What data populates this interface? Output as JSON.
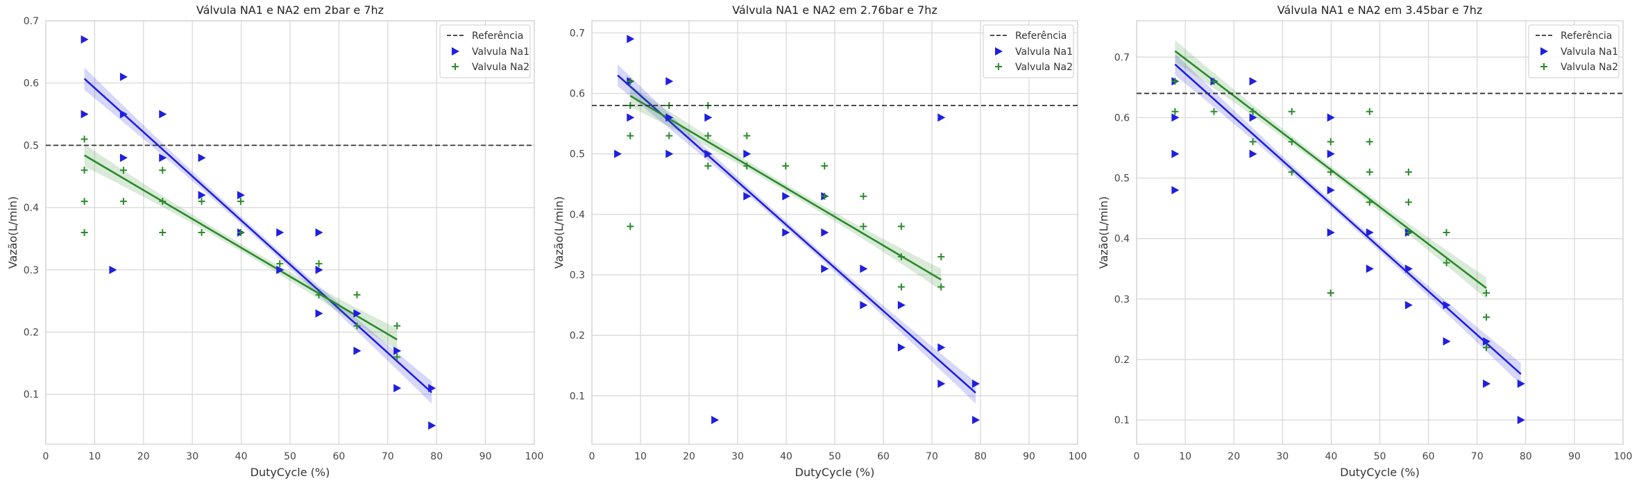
{
  "chart_data": [
    {
      "type": "scatter",
      "title": "Válvula NA1 e NA2 em 2bar e 7hz",
      "xlabel": "DutyCycle (%)",
      "ylabel": "Vazão(L/min)",
      "xlim": [
        0,
        100
      ],
      "ylim": [
        0.02,
        0.7
      ],
      "xticks": [
        0,
        10,
        20,
        30,
        40,
        50,
        60,
        70,
        80,
        90,
        100
      ],
      "yticks": [
        0.1,
        0.2,
        0.3,
        0.4,
        0.5,
        0.6,
        0.7
      ],
      "grid": true,
      "legend_position": "top-right",
      "reference": {
        "name": "Referência",
        "y": 0.5,
        "color": "#333333"
      },
      "series": [
        {
          "name": "Valvula Na1",
          "marker": "triangle-right",
          "color": "#1f1fe0",
          "points": [
            [
              7.9,
              0.67
            ],
            [
              7.9,
              0.55
            ],
            [
              13.7,
              0.3
            ],
            [
              15.9,
              0.61
            ],
            [
              15.9,
              0.55
            ],
            [
              15.9,
              0.48
            ],
            [
              23.9,
              0.55
            ],
            [
              23.9,
              0.48
            ],
            [
              31.9,
              0.48
            ],
            [
              31.9,
              0.42
            ],
            [
              39.9,
              0.42
            ],
            [
              39.9,
              0.36
            ],
            [
              47.9,
              0.36
            ],
            [
              47.9,
              0.3
            ],
            [
              55.9,
              0.36
            ],
            [
              55.9,
              0.3
            ],
            [
              55.9,
              0.23
            ],
            [
              63.7,
              0.23
            ],
            [
              63.7,
              0.17
            ],
            [
              71.9,
              0.17
            ],
            [
              71.9,
              0.11
            ],
            [
              79.0,
              0.11
            ],
            [
              79.0,
              0.05
            ]
          ],
          "fit": {
            "x": [
              7.9,
              79.0
            ],
            "y": [
              0.607,
              0.103
            ]
          }
        },
        {
          "name": "Valvula Na2",
          "marker": "plus",
          "color": "#2a8a2a",
          "points": [
            [
              7.9,
              0.51
            ],
            [
              7.9,
              0.46
            ],
            [
              7.9,
              0.41
            ],
            [
              7.9,
              0.36
            ],
            [
              15.9,
              0.46
            ],
            [
              15.9,
              0.41
            ],
            [
              23.9,
              0.46
            ],
            [
              23.9,
              0.41
            ],
            [
              23.9,
              0.36
            ],
            [
              31.9,
              0.41
            ],
            [
              31.9,
              0.36
            ],
            [
              39.9,
              0.41
            ],
            [
              39.9,
              0.36
            ],
            [
              47.9,
              0.31
            ],
            [
              55.9,
              0.31
            ],
            [
              55.9,
              0.26
            ],
            [
              63.7,
              0.26
            ],
            [
              63.7,
              0.21
            ],
            [
              71.9,
              0.21
            ],
            [
              71.9,
              0.16
            ]
          ],
          "fit": {
            "x": [
              7.9,
              71.9
            ],
            "y": [
              0.484,
              0.188
            ]
          }
        }
      ]
    },
    {
      "type": "scatter",
      "title": "Válvula NA1 e NA2 em 2.76bar e 7hz",
      "xlabel": "DutyCycle (%)",
      "ylabel": "Vazão(L/min)",
      "xlim": [
        0,
        100
      ],
      "ylim": [
        0.02,
        0.72
      ],
      "xticks": [
        0,
        10,
        20,
        30,
        40,
        50,
        60,
        70,
        80,
        90,
        100
      ],
      "yticks": [
        0.1,
        0.2,
        0.3,
        0.4,
        0.5,
        0.6,
        0.7
      ],
      "grid": true,
      "legend_position": "top-right",
      "reference": {
        "name": "Referência",
        "y": 0.58,
        "color": "#333333"
      },
      "series": [
        {
          "name": "Valvula Na1",
          "marker": "triangle-right",
          "color": "#1f1fe0",
          "points": [
            [
              5.3,
              0.5
            ],
            [
              7.9,
              0.69
            ],
            [
              7.9,
              0.62
            ],
            [
              7.9,
              0.56
            ],
            [
              15.9,
              0.62
            ],
            [
              15.9,
              0.56
            ],
            [
              15.9,
              0.5
            ],
            [
              23.9,
              0.56
            ],
            [
              23.9,
              0.5
            ],
            [
              25.3,
              0.06
            ],
            [
              31.9,
              0.5
            ],
            [
              31.9,
              0.43
            ],
            [
              39.9,
              0.43
            ],
            [
              39.9,
              0.37
            ],
            [
              47.9,
              0.43
            ],
            [
              47.9,
              0.37
            ],
            [
              47.9,
              0.31
            ],
            [
              55.9,
              0.31
            ],
            [
              55.9,
              0.25
            ],
            [
              63.7,
              0.25
            ],
            [
              63.7,
              0.18
            ],
            [
              71.9,
              0.56
            ],
            [
              71.9,
              0.18
            ],
            [
              71.9,
              0.12
            ],
            [
              79.0,
              0.12
            ],
            [
              79.0,
              0.06
            ]
          ],
          "fit": {
            "x": [
              5.3,
              79.0
            ],
            "y": [
              0.63,
              0.105
            ]
          }
        },
        {
          "name": "Valvula Na2",
          "marker": "plus",
          "color": "#2a8a2a",
          "points": [
            [
              7.9,
              0.62
            ],
            [
              7.9,
              0.58
            ],
            [
              7.9,
              0.53
            ],
            [
              7.9,
              0.38
            ],
            [
              15.9,
              0.58
            ],
            [
              15.9,
              0.53
            ],
            [
              23.9,
              0.58
            ],
            [
              23.9,
              0.53
            ],
            [
              23.9,
              0.48
            ],
            [
              31.9,
              0.53
            ],
            [
              31.9,
              0.48
            ],
            [
              39.9,
              0.48
            ],
            [
              47.9,
              0.48
            ],
            [
              47.9,
              0.43
            ],
            [
              55.9,
              0.43
            ],
            [
              55.9,
              0.38
            ],
            [
              63.7,
              0.38
            ],
            [
              63.7,
              0.33
            ],
            [
              63.7,
              0.28
            ],
            [
              71.9,
              0.33
            ],
            [
              71.9,
              0.28
            ]
          ],
          "fit": {
            "x": [
              7.9,
              71.9
            ],
            "y": [
              0.596,
              0.292
            ]
          }
        }
      ]
    },
    {
      "type": "scatter",
      "title": "Válvula NA1 e NA2 em 3.45bar e 7hz",
      "xlabel": "DutyCycle (%)",
      "ylabel": "Vazão(L/min)",
      "xlim": [
        0,
        100
      ],
      "ylim": [
        0.06,
        0.76
      ],
      "xticks": [
        0,
        10,
        20,
        30,
        40,
        50,
        60,
        70,
        80,
        90,
        100
      ],
      "yticks": [
        0.1,
        0.2,
        0.3,
        0.4,
        0.5,
        0.6,
        0.7
      ],
      "grid": true,
      "legend_position": "top-right",
      "reference": {
        "name": "Referência",
        "y": 0.64,
        "color": "#333333"
      },
      "series": [
        {
          "name": "Valvula Na1",
          "marker": "triangle-right",
          "color": "#1f1fe0",
          "points": [
            [
              7.9,
              0.66
            ],
            [
              7.9,
              0.6
            ],
            [
              7.9,
              0.54
            ],
            [
              7.9,
              0.48
            ],
            [
              15.9,
              0.66
            ],
            [
              23.9,
              0.66
            ],
            [
              23.9,
              0.6
            ],
            [
              23.9,
              0.54
            ],
            [
              39.9,
              0.6
            ],
            [
              39.9,
              0.54
            ],
            [
              39.9,
              0.48
            ],
            [
              39.9,
              0.41
            ],
            [
              47.9,
              0.41
            ],
            [
              47.9,
              0.35
            ],
            [
              55.9,
              0.41
            ],
            [
              55.9,
              0.35
            ],
            [
              55.9,
              0.29
            ],
            [
              63.7,
              0.29
            ],
            [
              63.7,
              0.23
            ],
            [
              71.9,
              0.23
            ],
            [
              71.9,
              0.16
            ],
            [
              79.0,
              0.16
            ],
            [
              79.0,
              0.1
            ]
          ],
          "fit": {
            "x": [
              7.9,
              79.0
            ],
            "y": [
              0.688,
              0.176
            ]
          }
        },
        {
          "name": "Valvula Na2",
          "marker": "plus",
          "color": "#2a8a2a",
          "points": [
            [
              7.9,
              0.66
            ],
            [
              7.9,
              0.61
            ],
            [
              15.9,
              0.66
            ],
            [
              15.9,
              0.61
            ],
            [
              23.9,
              0.61
            ],
            [
              23.9,
              0.56
            ],
            [
              31.9,
              0.61
            ],
            [
              31.9,
              0.56
            ],
            [
              31.9,
              0.51
            ],
            [
              39.9,
              0.56
            ],
            [
              39.9,
              0.51
            ],
            [
              39.9,
              0.31
            ],
            [
              47.9,
              0.61
            ],
            [
              47.9,
              0.56
            ],
            [
              47.9,
              0.51
            ],
            [
              47.9,
              0.46
            ],
            [
              55.9,
              0.51
            ],
            [
              55.9,
              0.46
            ],
            [
              55.9,
              0.41
            ],
            [
              63.7,
              0.41
            ],
            [
              63.7,
              0.36
            ],
            [
              71.9,
              0.31
            ],
            [
              71.9,
              0.27
            ],
            [
              71.9,
              0.22
            ]
          ],
          "fit": {
            "x": [
              7.9,
              71.9
            ],
            "y": [
              0.71,
              0.318
            ]
          }
        }
      ]
    }
  ]
}
